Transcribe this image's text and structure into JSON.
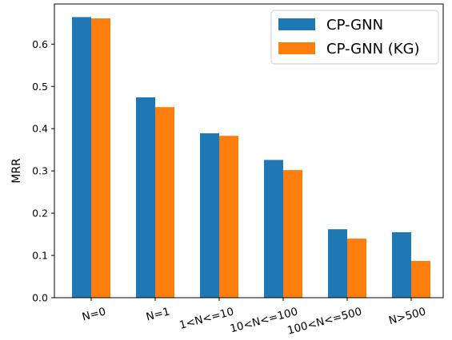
{
  "chart_data": {
    "type": "bar",
    "title": "",
    "xlabel": "",
    "ylabel": "MRR",
    "categories": [
      "N=0",
      "N=1",
      "1<N<=10",
      "10<N<=100",
      "100<N<=500",
      "N>500"
    ],
    "series": [
      {
        "name": "CP-GNN",
        "color": "#1f77b4",
        "values": [
          0.664,
          0.474,
          0.389,
          0.326,
          0.162,
          0.155
        ]
      },
      {
        "name": "CP-GNN (KG)",
        "color": "#ff7f0e",
        "values": [
          0.661,
          0.451,
          0.383,
          0.302,
          0.14,
          0.087
        ]
      }
    ],
    "ylim": [
      0,
      0.695
    ],
    "yticks": [
      "0.0",
      "0.1",
      "0.2",
      "0.3",
      "0.4",
      "0.5",
      "0.6"
    ],
    "grid": false,
    "legend": "top-right"
  }
}
